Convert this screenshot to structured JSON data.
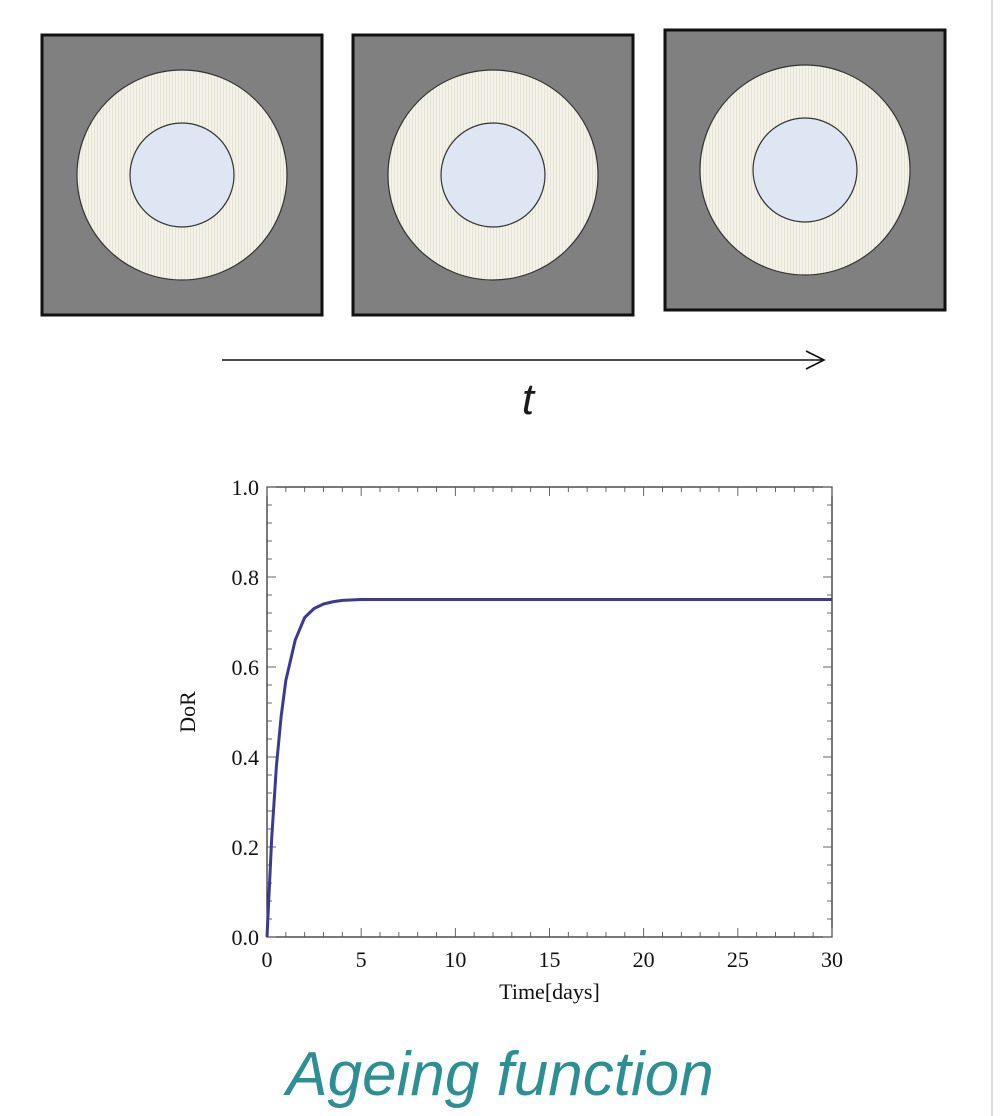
{
  "time_arrow": {
    "label": "t"
  },
  "caption": "Ageing function",
  "colors": {
    "panel_bg": "#808080",
    "outer_ring": "#f3f1e6",
    "inner_core": "#dde6f2",
    "curve": "#3b3b8f",
    "caption": "#2e8f93"
  },
  "chart_data": {
    "type": "line",
    "xlabel": "Time[days]",
    "ylabel": "DoR",
    "xlim": [
      0,
      30
    ],
    "ylim": [
      0,
      1
    ],
    "x_ticks": [
      0,
      5,
      10,
      15,
      20,
      25,
      30
    ],
    "y_ticks": [
      "0.0",
      "0.2",
      "0.4",
      "0.6",
      "0.8",
      "1.0"
    ],
    "grid": false,
    "series": [
      {
        "x": [
          0,
          0.25,
          0.5,
          0.75,
          1,
          1.5,
          2,
          2.5,
          3,
          3.5,
          4,
          5,
          6,
          8,
          10,
          15,
          20,
          25,
          30
        ],
        "y": [
          0,
          0.22,
          0.38,
          0.49,
          0.57,
          0.66,
          0.71,
          0.73,
          0.74,
          0.745,
          0.748,
          0.75,
          0.75,
          0.75,
          0.75,
          0.75,
          0.75,
          0.75,
          0.75
        ]
      }
    ]
  }
}
